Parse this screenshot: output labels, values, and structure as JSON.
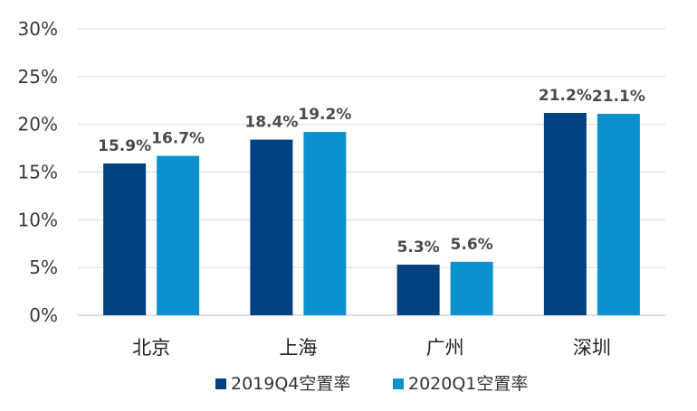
{
  "chart_data": {
    "type": "bar",
    "categories": [
      "北京",
      "上海",
      "广州",
      "深圳"
    ],
    "series": [
      {
        "name": "2019Q4空置率",
        "values": [
          15.9,
          18.4,
          5.3,
          21.2
        ],
        "labels": [
          "15.9%",
          "18.4%",
          "5.3%",
          "21.2%"
        ]
      },
      {
        "name": "2020Q1空置率",
        "values": [
          16.7,
          19.2,
          5.6,
          21.1
        ],
        "labels": [
          "16.7%",
          "19.2%",
          "5.6%",
          "21.1%"
        ]
      }
    ],
    "ylim": [
      0,
      30
    ],
    "yticks": [
      "0%",
      "5%",
      "10%",
      "15%",
      "20%",
      "25%",
      "30%"
    ],
    "ytick_values": [
      0,
      5,
      10,
      15,
      20,
      25,
      30
    ],
    "grid": true,
    "legend_position": "bottom",
    "colors": [
      "#00427f",
      "#0c91cf"
    ]
  }
}
